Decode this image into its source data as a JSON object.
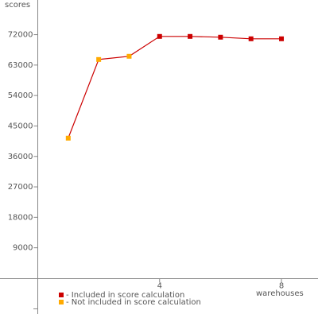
{
  "chart_data": {
    "type": "line",
    "y_label": "scores",
    "x_label": "warehouses",
    "x": [
      1,
      2,
      3,
      4,
      5,
      6,
      7,
      8
    ],
    "values": [
      41400,
      64650,
      65600,
      71470,
      71470,
      71240,
      70770,
      70770
    ],
    "included": [
      false,
      false,
      false,
      true,
      true,
      true,
      true,
      true
    ],
    "line_color": "#cc0000",
    "legend": [
      {
        "name": "- Included in score calculation",
        "color": "#cc0000"
      },
      {
        "name": "- Not included in score calculation",
        "color": "#ffaa00"
      }
    ],
    "xlim": [
      0,
      9.2
    ],
    "xticks": [
      4,
      8
    ],
    "ylim": [
      -10000,
      82000
    ],
    "yticks": [
      9000,
      18000,
      27000,
      36000,
      45000,
      54000,
      63000,
      72000
    ]
  }
}
